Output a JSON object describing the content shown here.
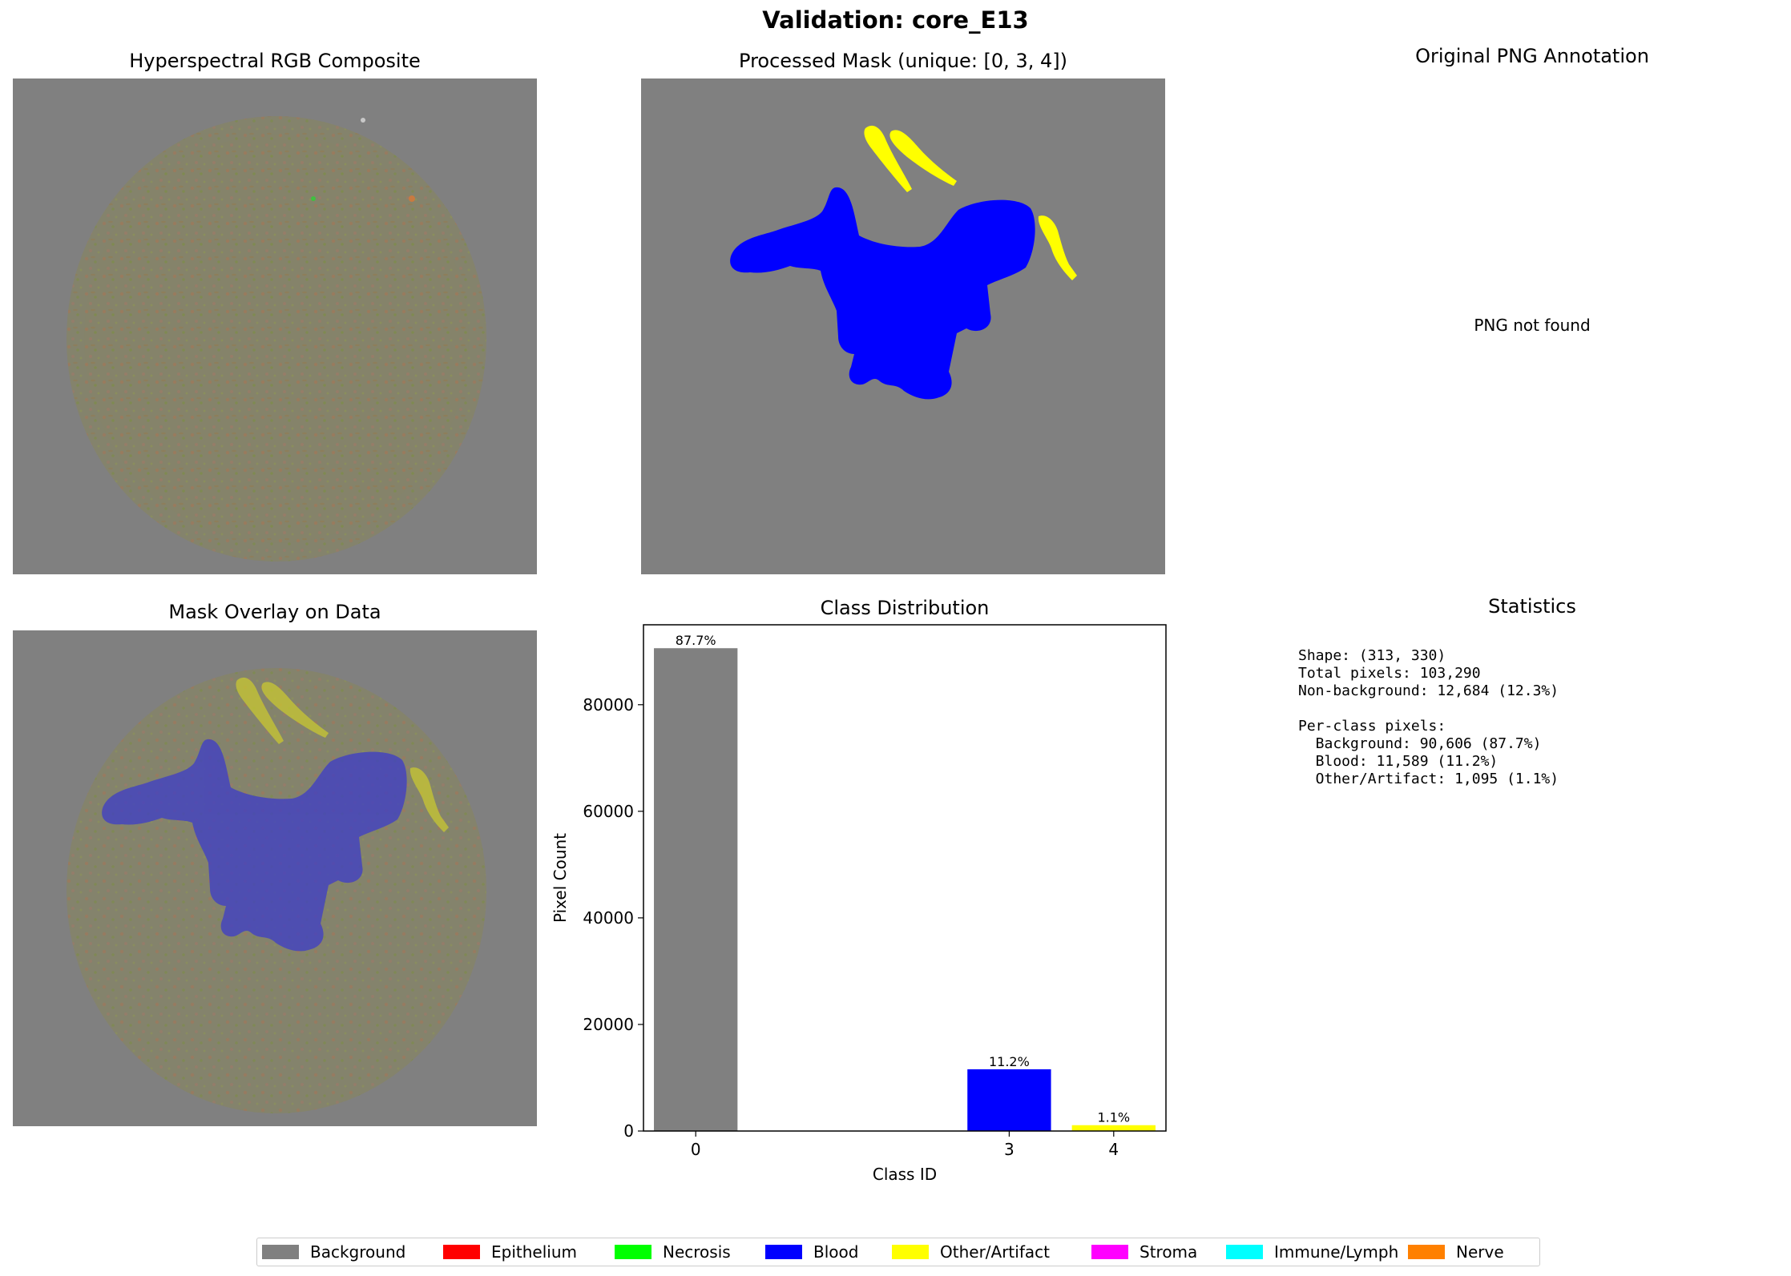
{
  "suptitle": "Validation: core_E13",
  "panels": {
    "rgb": {
      "title": "Hyperspectral RGB Composite"
    },
    "mask": {
      "title": "Processed Mask (unique: [0, 3, 4])"
    },
    "png": {
      "title": "Original PNG Annotation",
      "message": "PNG not found"
    },
    "overlay": {
      "title": "Mask Overlay on Data"
    },
    "stats": {
      "title": "Statistics",
      "lines": [
        "Shape: (313, 330)",
        "Total pixels: 103,290",
        "Non-background: 12,684 (12.3%)",
        "",
        "Per-class pixels:",
        "  Background: 90,606 (87.7%)",
        "  Blood: 11,589 (11.2%)",
        "  Other/Artifact: 1,095 (1.1%)"
      ]
    }
  },
  "chart_data": {
    "type": "bar",
    "title": "Class Distribution",
    "xlabel": "Class ID",
    "ylabel": "Pixel Count",
    "x": [
      0,
      3,
      4
    ],
    "values": [
      90606,
      11589,
      1095
    ],
    "labels": [
      "87.7%",
      "11.2%",
      "1.1%"
    ],
    "colors": [
      "#808080",
      "#0000ff",
      "#ffff00"
    ],
    "xlim": [
      -0.5,
      4.5
    ],
    "ylim": [
      0,
      95000
    ],
    "xticks": [
      0,
      3,
      4
    ],
    "yticks": [
      0,
      20000,
      40000,
      60000,
      80000
    ],
    "grid": false
  },
  "legend": {
    "items": [
      {
        "label": "Background",
        "color": "#808080"
      },
      {
        "label": "Epithelium",
        "color": "#ff0000"
      },
      {
        "label": "Necrosis",
        "color": "#00ff00"
      },
      {
        "label": "Blood",
        "color": "#0000ff"
      },
      {
        "label": "Other/Artifact",
        "color": "#ffff00"
      },
      {
        "label": "Stroma",
        "color": "#ff00ff"
      },
      {
        "label": "Immune/Lymph",
        "color": "#00ffff"
      },
      {
        "label": "Nerve",
        "color": "#ff8000"
      }
    ]
  }
}
